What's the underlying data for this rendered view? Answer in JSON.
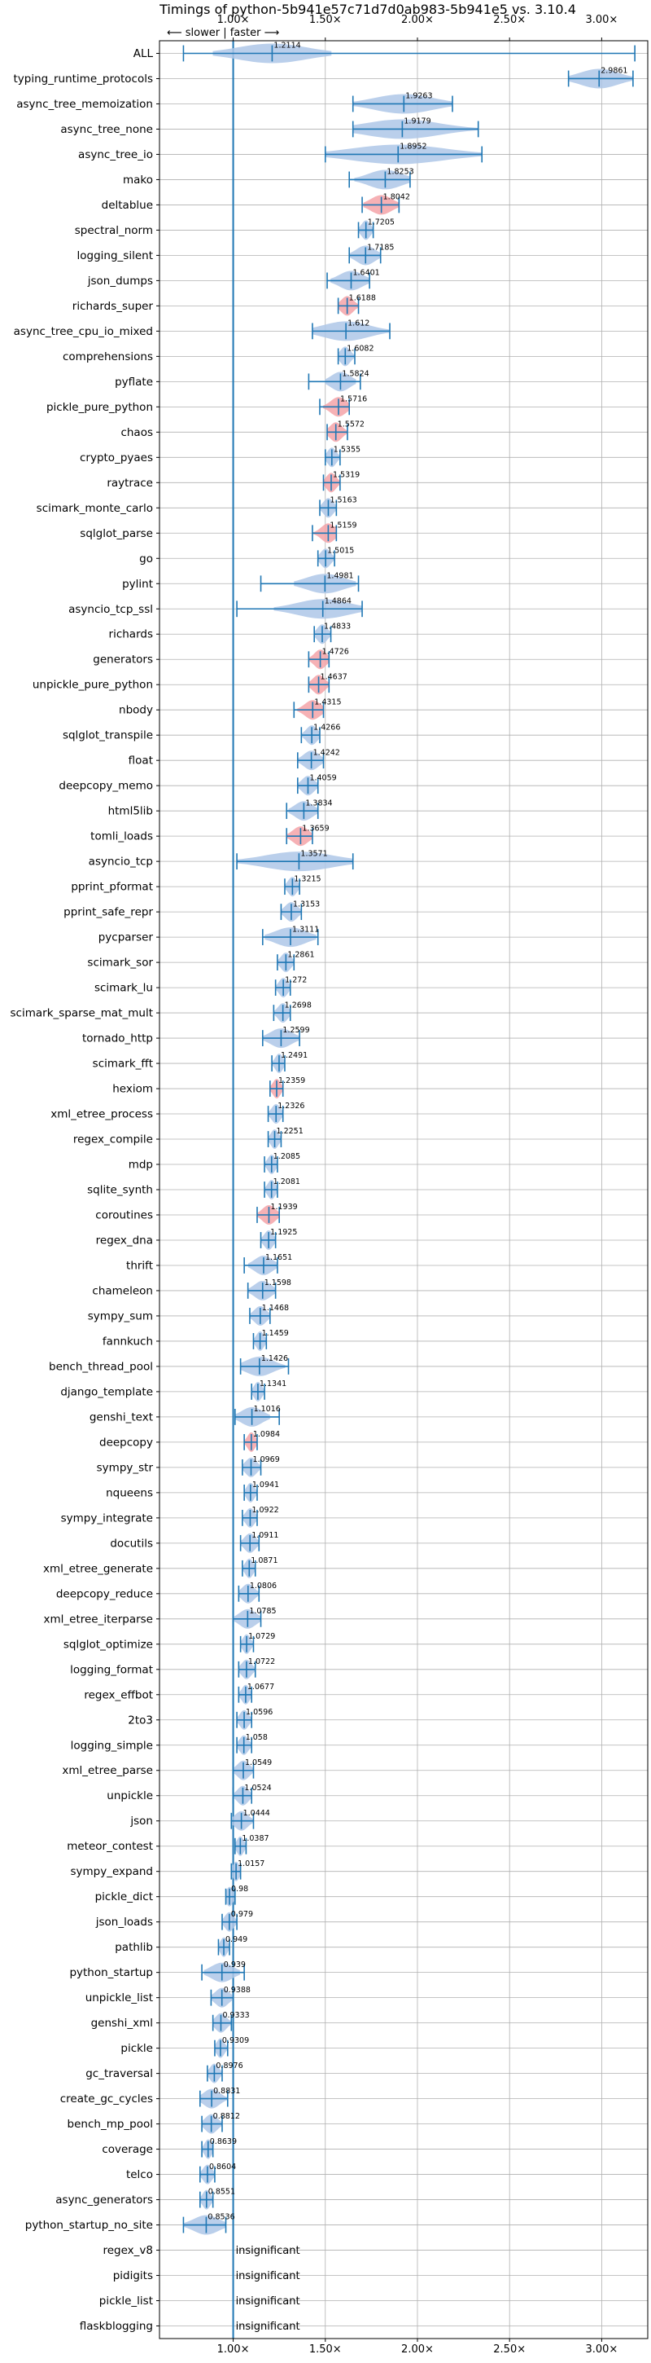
{
  "chart_data": {
    "type": "violin",
    "title": "Timings of python-5b941e57c71d7d0ab983-5b941e5 vs. 3.10.4",
    "direction_note": "⟵ slower | faster ⟶",
    "xlim": [
      0.6,
      3.25
    ],
    "xticks": [
      1.0,
      1.5,
      2.0,
      2.5,
      3.0
    ],
    "xtick_labels": [
      "1.00×",
      "1.50×",
      "2.00×",
      "2.50×",
      "3.00×"
    ],
    "grid": true,
    "reference_line": 1.0,
    "insignificant_label": "insignificant",
    "benchmarks": [
      {
        "name": "ALL",
        "value": 1.2114,
        "spread": 0.23,
        "lo": 0.73,
        "hi": 3.18,
        "highlight": false
      },
      {
        "name": "typing_runtime_protocols",
        "value": 2.9861,
        "spread": 0.14,
        "lo": 2.82,
        "hi": 3.17,
        "highlight": false
      },
      {
        "name": "async_tree_memoization",
        "value": 1.9263,
        "spread": 0.26,
        "lo": 1.65,
        "hi": 2.19,
        "highlight": false
      },
      {
        "name": "async_tree_none",
        "value": 1.9179,
        "spread": 0.32,
        "lo": 1.65,
        "hi": 2.33,
        "highlight": false
      },
      {
        "name": "async_tree_io",
        "value": 1.8952,
        "spread": 0.4,
        "lo": 1.5,
        "hi": 2.35,
        "highlight": false
      },
      {
        "name": "mako",
        "value": 1.8253,
        "spread": 0.12,
        "lo": 1.63,
        "hi": 1.96,
        "highlight": false
      },
      {
        "name": "deltablue",
        "value": 1.8042,
        "spread": 0.07,
        "lo": 1.7,
        "hi": 1.9,
        "highlight": true
      },
      {
        "name": "spectral_norm",
        "value": 1.7205,
        "spread": 0.06,
        "lo": 1.68,
        "hi": 1.76,
        "highlight": false
      },
      {
        "name": "logging_silent",
        "value": 1.7185,
        "spread": 0.1,
        "lo": 1.63,
        "hi": 1.8,
        "highlight": false
      },
      {
        "name": "json_dumps",
        "value": 1.6401,
        "spread": 0.08,
        "lo": 1.51,
        "hi": 1.74,
        "highlight": false
      },
      {
        "name": "richards_super",
        "value": 1.6188,
        "spread": 0.06,
        "lo": 1.57,
        "hi": 1.68,
        "highlight": true
      },
      {
        "name": "async_tree_cpu_io_mixed",
        "value": 1.612,
        "spread": 0.18,
        "lo": 1.43,
        "hi": 1.85,
        "highlight": false
      },
      {
        "name": "comprehensions",
        "value": 1.6082,
        "spread": 0.05,
        "lo": 1.57,
        "hi": 1.66,
        "highlight": false
      },
      {
        "name": "pyflate",
        "value": 1.5824,
        "spread": 0.06,
        "lo": 1.41,
        "hi": 1.69,
        "highlight": false
      },
      {
        "name": "pickle_pure_python",
        "value": 1.5716,
        "spread": 0.06,
        "lo": 1.47,
        "hi": 1.63,
        "highlight": true
      },
      {
        "name": "chaos",
        "value": 1.5572,
        "spread": 0.06,
        "lo": 1.51,
        "hi": 1.62,
        "highlight": true
      },
      {
        "name": "crypto_pyaes",
        "value": 1.5355,
        "spread": 0.05,
        "lo": 1.5,
        "hi": 1.58,
        "highlight": false
      },
      {
        "name": "raytrace",
        "value": 1.5319,
        "spread": 0.06,
        "lo": 1.49,
        "hi": 1.58,
        "highlight": true
      },
      {
        "name": "scimark_monte_carlo",
        "value": 1.5163,
        "spread": 0.05,
        "lo": 1.47,
        "hi": 1.56,
        "highlight": false
      },
      {
        "name": "sqlglot_parse",
        "value": 1.5159,
        "spread": 0.06,
        "lo": 1.43,
        "hi": 1.56,
        "highlight": true
      },
      {
        "name": "go",
        "value": 1.5015,
        "spread": 0.05,
        "lo": 1.46,
        "hi": 1.55,
        "highlight": false
      },
      {
        "name": "pylint",
        "value": 1.4981,
        "spread": 0.12,
        "lo": 1.15,
        "hi": 1.68,
        "highlight": false
      },
      {
        "name": "asyncio_tcp_ssl",
        "value": 1.4864,
        "spread": 0.19,
        "lo": 1.02,
        "hi": 1.7,
        "highlight": false
      },
      {
        "name": "richards",
        "value": 1.4833,
        "spread": 0.05,
        "lo": 1.44,
        "hi": 1.53,
        "highlight": false
      },
      {
        "name": "generators",
        "value": 1.4726,
        "spread": 0.05,
        "lo": 1.41,
        "hi": 1.52,
        "highlight": true
      },
      {
        "name": "unpickle_pure_python",
        "value": 1.4637,
        "spread": 0.06,
        "lo": 1.41,
        "hi": 1.52,
        "highlight": true
      },
      {
        "name": "nbody",
        "value": 1.4315,
        "spread": 0.06,
        "lo": 1.33,
        "hi": 1.49,
        "highlight": true
      },
      {
        "name": "sqlglot_transpile",
        "value": 1.4266,
        "spread": 0.05,
        "lo": 1.37,
        "hi": 1.47,
        "highlight": false
      },
      {
        "name": "float",
        "value": 1.4242,
        "spread": 0.06,
        "lo": 1.35,
        "hi": 1.49,
        "highlight": false
      },
      {
        "name": "deepcopy_memo",
        "value": 1.4059,
        "spread": 0.05,
        "lo": 1.35,
        "hi": 1.46,
        "highlight": false
      },
      {
        "name": "html5lib",
        "value": 1.3834,
        "spread": 0.06,
        "lo": 1.29,
        "hi": 1.46,
        "highlight": false
      },
      {
        "name": "tomli_loads",
        "value": 1.3659,
        "spread": 0.07,
        "lo": 1.29,
        "hi": 1.43,
        "highlight": true
      },
      {
        "name": "asyncio_tcp",
        "value": 1.3571,
        "spread": 0.26,
        "lo": 1.02,
        "hi": 1.65,
        "highlight": false
      },
      {
        "name": "pprint_pformat",
        "value": 1.3215,
        "spread": 0.04,
        "lo": 1.28,
        "hi": 1.36,
        "highlight": false
      },
      {
        "name": "pprint_safe_repr",
        "value": 1.3153,
        "spread": 0.05,
        "lo": 1.26,
        "hi": 1.37,
        "highlight": false
      },
      {
        "name": "pycparser",
        "value": 1.3111,
        "spread": 0.1,
        "lo": 1.16,
        "hi": 1.46,
        "highlight": false
      },
      {
        "name": "scimark_sor",
        "value": 1.2861,
        "spread": 0.04,
        "lo": 1.24,
        "hi": 1.33,
        "highlight": false
      },
      {
        "name": "scimark_lu",
        "value": 1.272,
        "spread": 0.04,
        "lo": 1.23,
        "hi": 1.31,
        "highlight": false
      },
      {
        "name": "scimark_sparse_mat_mult",
        "value": 1.2698,
        "spread": 0.04,
        "lo": 1.22,
        "hi": 1.31,
        "highlight": false
      },
      {
        "name": "tornado_http",
        "value": 1.2599,
        "spread": 0.07,
        "lo": 1.16,
        "hi": 1.36,
        "highlight": false
      },
      {
        "name": "scimark_fft",
        "value": 1.2491,
        "spread": 0.04,
        "lo": 1.21,
        "hi": 1.28,
        "highlight": false
      },
      {
        "name": "hexiom",
        "value": 1.2359,
        "spread": 0.04,
        "lo": 1.2,
        "hi": 1.27,
        "highlight": true
      },
      {
        "name": "xml_etree_process",
        "value": 1.2326,
        "spread": 0.04,
        "lo": 1.19,
        "hi": 1.27,
        "highlight": false
      },
      {
        "name": "regex_compile",
        "value": 1.2251,
        "spread": 0.04,
        "lo": 1.19,
        "hi": 1.26,
        "highlight": false
      },
      {
        "name": "mdp",
        "value": 1.2085,
        "spread": 0.04,
        "lo": 1.17,
        "hi": 1.24,
        "highlight": false
      },
      {
        "name": "sqlite_synth",
        "value": 1.2081,
        "spread": 0.04,
        "lo": 1.17,
        "hi": 1.24,
        "highlight": false
      },
      {
        "name": "coroutines",
        "value": 1.1939,
        "spread": 0.05,
        "lo": 1.13,
        "hi": 1.25,
        "highlight": true
      },
      {
        "name": "regex_dna",
        "value": 1.1925,
        "spread": 0.04,
        "lo": 1.15,
        "hi": 1.23,
        "highlight": false
      },
      {
        "name": "thrift",
        "value": 1.1651,
        "spread": 0.06,
        "lo": 1.06,
        "hi": 1.24,
        "highlight": false
      },
      {
        "name": "chameleon",
        "value": 1.1598,
        "spread": 0.06,
        "lo": 1.08,
        "hi": 1.23,
        "highlight": false
      },
      {
        "name": "sympy_sum",
        "value": 1.1468,
        "spread": 0.05,
        "lo": 1.09,
        "hi": 1.2,
        "highlight": false
      },
      {
        "name": "fannkuch",
        "value": 1.1459,
        "spread": 0.04,
        "lo": 1.11,
        "hi": 1.18,
        "highlight": false
      },
      {
        "name": "bench_thread_pool",
        "value": 1.1426,
        "spread": 0.1,
        "lo": 1.04,
        "hi": 1.3,
        "highlight": false
      },
      {
        "name": "django_template",
        "value": 1.1341,
        "spread": 0.04,
        "lo": 1.1,
        "hi": 1.17,
        "highlight": false
      },
      {
        "name": "genshi_text",
        "value": 1.1016,
        "spread": 0.07,
        "lo": 1.01,
        "hi": 1.25,
        "highlight": false
      },
      {
        "name": "deepcopy",
        "value": 1.0984,
        "spread": 0.04,
        "lo": 1.06,
        "hi": 1.13,
        "highlight": true
      },
      {
        "name": "sympy_str",
        "value": 1.0969,
        "spread": 0.05,
        "lo": 1.05,
        "hi": 1.15,
        "highlight": false
      },
      {
        "name": "nqueens",
        "value": 1.0941,
        "spread": 0.04,
        "lo": 1.06,
        "hi": 1.13,
        "highlight": false
      },
      {
        "name": "sympy_integrate",
        "value": 1.0922,
        "spread": 0.04,
        "lo": 1.05,
        "hi": 1.13,
        "highlight": false
      },
      {
        "name": "docutils",
        "value": 1.0911,
        "spread": 0.05,
        "lo": 1.04,
        "hi": 1.14,
        "highlight": false
      },
      {
        "name": "xml_etree_generate",
        "value": 1.0871,
        "spread": 0.04,
        "lo": 1.05,
        "hi": 1.12,
        "highlight": false
      },
      {
        "name": "deepcopy_reduce",
        "value": 1.0806,
        "spread": 0.05,
        "lo": 1.03,
        "hi": 1.14,
        "highlight": false
      },
      {
        "name": "xml_etree_iterparse",
        "value": 1.0785,
        "spread": 0.06,
        "lo": 1.0,
        "hi": 1.15,
        "highlight": false
      },
      {
        "name": "sqlglot_optimize",
        "value": 1.0729,
        "spread": 0.04,
        "lo": 1.04,
        "hi": 1.11,
        "highlight": false
      },
      {
        "name": "logging_format",
        "value": 1.0722,
        "spread": 0.05,
        "lo": 1.03,
        "hi": 1.12,
        "highlight": false
      },
      {
        "name": "regex_effbot",
        "value": 1.0677,
        "spread": 0.04,
        "lo": 1.03,
        "hi": 1.1,
        "highlight": false
      },
      {
        "name": "2to3",
        "value": 1.0596,
        "spread": 0.04,
        "lo": 1.02,
        "hi": 1.1,
        "highlight": false
      },
      {
        "name": "logging_simple",
        "value": 1.058,
        "spread": 0.04,
        "lo": 1.02,
        "hi": 1.1,
        "highlight": false
      },
      {
        "name": "xml_etree_parse",
        "value": 1.0549,
        "spread": 0.05,
        "lo": 1.0,
        "hi": 1.11,
        "highlight": false
      },
      {
        "name": "unpickle",
        "value": 1.0524,
        "spread": 0.05,
        "lo": 1.0,
        "hi": 1.1,
        "highlight": false
      },
      {
        "name": "json",
        "value": 1.0444,
        "spread": 0.06,
        "lo": 0.99,
        "hi": 1.11,
        "highlight": false
      },
      {
        "name": "meteor_contest",
        "value": 1.0387,
        "spread": 0.03,
        "lo": 1.01,
        "hi": 1.07,
        "highlight": false
      },
      {
        "name": "sympy_expand",
        "value": 1.0157,
        "spread": 0.03,
        "lo": 0.99,
        "hi": 1.04,
        "highlight": false
      },
      {
        "name": "pickle_dict",
        "value": 0.98,
        "spread": 0.03,
        "lo": 0.96,
        "hi": 1.01,
        "highlight": false
      },
      {
        "name": "json_loads",
        "value": 0.979,
        "spread": 0.04,
        "lo": 0.94,
        "hi": 1.02,
        "highlight": false
      },
      {
        "name": "pathlib",
        "value": 0.949,
        "spread": 0.04,
        "lo": 0.92,
        "hi": 0.98,
        "highlight": false
      },
      {
        "name": "python_startup",
        "value": 0.939,
        "spread": 0.07,
        "lo": 0.83,
        "hi": 1.06,
        "highlight": false
      },
      {
        "name": "unpickle_list",
        "value": 0.9388,
        "spread": 0.05,
        "lo": 0.88,
        "hi": 1.0,
        "highlight": false
      },
      {
        "name": "genshi_xml",
        "value": 0.9333,
        "spread": 0.05,
        "lo": 0.89,
        "hi": 0.99,
        "highlight": false
      },
      {
        "name": "pickle",
        "value": 0.9309,
        "spread": 0.04,
        "lo": 0.9,
        "hi": 0.97,
        "highlight": false
      },
      {
        "name": "gc_traversal",
        "value": 0.8976,
        "spread": 0.04,
        "lo": 0.86,
        "hi": 0.94,
        "highlight": false
      },
      {
        "name": "create_gc_cycles",
        "value": 0.8831,
        "spread": 0.06,
        "lo": 0.82,
        "hi": 0.97,
        "highlight": false
      },
      {
        "name": "bench_mp_pool",
        "value": 0.8812,
        "spread": 0.05,
        "lo": 0.83,
        "hi": 0.94,
        "highlight": false
      },
      {
        "name": "coverage",
        "value": 0.8639,
        "spread": 0.03,
        "lo": 0.83,
        "hi": 0.89,
        "highlight": false
      },
      {
        "name": "telco",
        "value": 0.8604,
        "spread": 0.04,
        "lo": 0.82,
        "hi": 0.9,
        "highlight": false
      },
      {
        "name": "async_generators",
        "value": 0.8551,
        "spread": 0.04,
        "lo": 0.82,
        "hi": 0.89,
        "highlight": false
      },
      {
        "name": "python_startup_no_site",
        "value": 0.8536,
        "spread": 0.09,
        "lo": 0.73,
        "hi": 0.96,
        "highlight": false
      },
      {
        "name": "regex_v8",
        "value": null,
        "insignificant": true
      },
      {
        "name": "pidigits",
        "value": null,
        "insignificant": true
      },
      {
        "name": "pickle_list",
        "value": null,
        "insignificant": true
      },
      {
        "name": "flaskblogging",
        "value": null,
        "insignificant": true
      }
    ]
  },
  "colors": {
    "violin": "#1f77b4",
    "violin_fill": "#aec7e8",
    "highlight": "#f4a3a8",
    "grid": "#b0b0b0",
    "axis": "#000000"
  }
}
